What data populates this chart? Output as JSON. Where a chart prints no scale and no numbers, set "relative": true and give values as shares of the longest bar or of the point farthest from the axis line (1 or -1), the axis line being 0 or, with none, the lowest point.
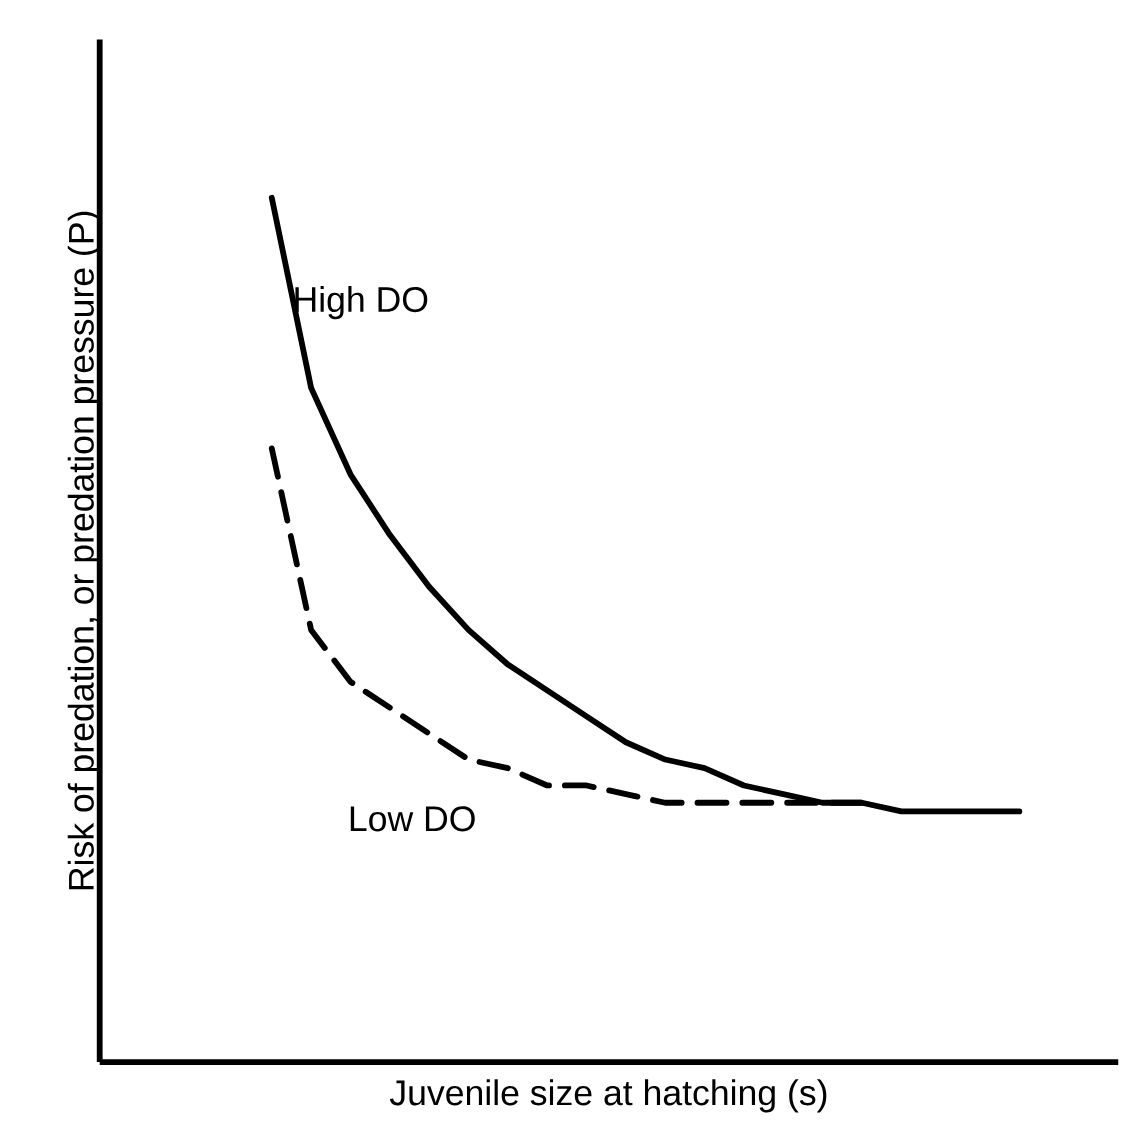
{
  "chart_data": {
    "type": "line",
    "relative": true,
    "xlabel": "Juvenile size at hatching (s)",
    "ylabel": "Risk of predation, or predation pressure (P)",
    "categories": [
      null,
      null,
      null,
      null,
      null,
      null,
      null,
      null,
      null,
      null,
      null,
      null,
      null,
      null,
      null,
      null,
      null,
      null,
      null,
      null
    ],
    "series": [
      {
        "name": "High DO",
        "color": "#000000",
        "line_style": "solid",
        "values": [
          1.0,
          0.78,
          0.68,
          0.61,
          0.55,
          0.5,
          0.46,
          0.43,
          0.4,
          0.37,
          0.35,
          0.34,
          0.32,
          0.31,
          0.3,
          0.3,
          0.29,
          0.29,
          0.29,
          0.29
        ]
      },
      {
        "name": "Low DO",
        "color": "#000000",
        "line_style": "dashed",
        "values": [
          0.71,
          0.5,
          0.44,
          0.41,
          0.38,
          0.35,
          0.34,
          0.32,
          0.32,
          0.31,
          0.3,
          0.3,
          0.3,
          0.3,
          0.3,
          0.3,
          null,
          null,
          null,
          null
        ]
      }
    ],
    "legend": false
  }
}
